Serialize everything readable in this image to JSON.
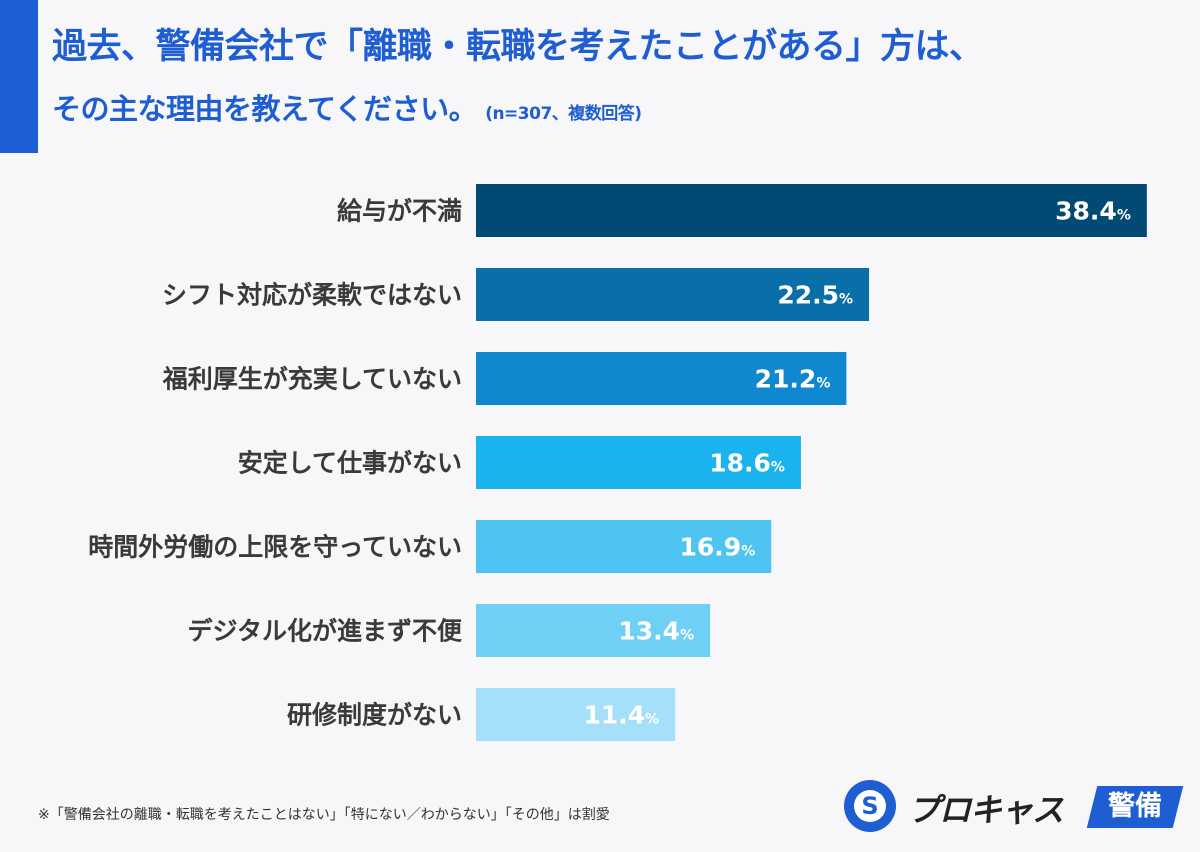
{
  "header": {
    "title_line1": "過去、警備会社で「離職・転職を考えたことがある」方は、",
    "title_line2": "その主な理由を教えてください。",
    "sample_note": "(n=307、複数回答)"
  },
  "chart_data": {
    "type": "bar",
    "orientation": "horizontal",
    "categories": [
      "給与が不満",
      "シフト対応が柔軟ではない",
      "福利厚生が充実していない",
      "安定して仕事がない",
      "時間外労働の上限を守っていない",
      "デジタル化が進まず不便",
      "研修制度がない"
    ],
    "values": [
      38.4,
      22.5,
      21.2,
      18.6,
      16.9,
      13.4,
      11.4
    ],
    "value_suffix": "%",
    "xlim": [
      0,
      40
    ],
    "colors": [
      "#004a74",
      "#0a6fa8",
      "#1088d0",
      "#1ab3ee",
      "#4fc4f3",
      "#6fd0f6",
      "#a5dffa"
    ],
    "grid": false,
    "legend": "none"
  },
  "footnote": "※「警備会社の離職・転職を考えたことはない」「特にない／わからない」「その他」は割愛",
  "logo": {
    "circle_glyph": "S",
    "name": "プロキャス",
    "tag": "警備"
  }
}
